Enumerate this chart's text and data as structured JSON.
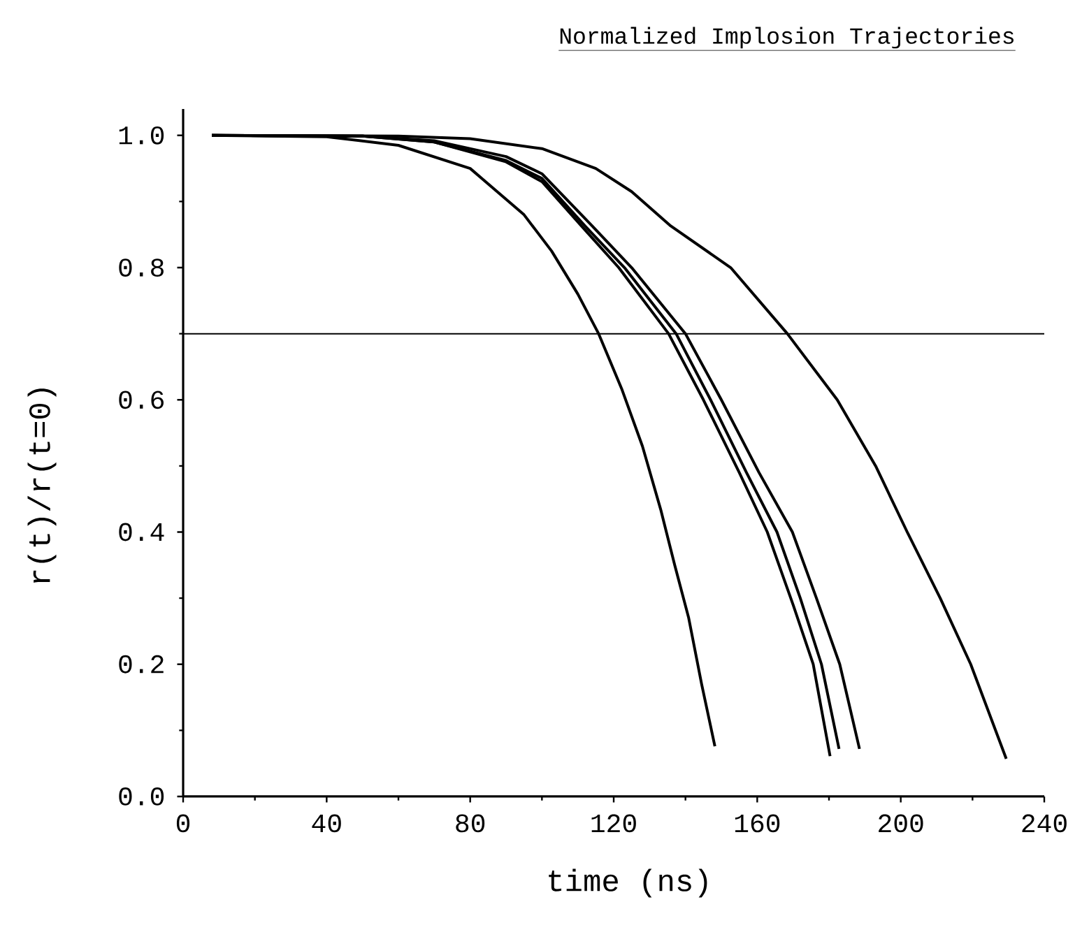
{
  "chart_data": {
    "type": "line",
    "title": "Normalized Implosion Trajectories",
    "xlabel": "time (ns)",
    "ylabel": "r(t)/r(t=0)",
    "xlim": [
      0,
      240
    ],
    "ylim": [
      0,
      1.04
    ],
    "xticks": [
      0,
      40,
      80,
      120,
      160,
      200,
      240
    ],
    "yticks": [
      {
        "value": 0,
        "label": "0.0"
      },
      0.2,
      0.4,
      0.6,
      0.8,
      {
        "value": 1,
        "label": "1.0"
      }
    ],
    "grid": false,
    "ref_lines": [
      {
        "axis": "y",
        "value": 0.7,
        "color": "#000000"
      }
    ],
    "series": [
      {
        "color": "#000000",
        "x": [
          8,
          40,
          60,
          80,
          95,
          102.7,
          110,
          115.8,
          122.2,
          128,
          133.1,
          137,
          140.9,
          144.5,
          148.2
        ],
        "values": [
          1.0,
          0.998,
          0.985,
          0.95,
          0.88,
          0.825,
          0.76,
          0.7,
          0.617,
          0.53,
          0.434,
          0.35,
          0.27,
          0.17,
          0.076
        ]
      },
      {
        "color": "#000000",
        "x": [
          8,
          50,
          70,
          90,
          100,
          111,
          121.4,
          135.3,
          145,
          155,
          162.8,
          170,
          175.6,
          180.3
        ],
        "values": [
          1.0,
          0.999,
          0.99,
          0.96,
          0.93,
          0.863,
          0.8,
          0.7,
          0.6,
          0.49,
          0.4,
          0.29,
          0.2,
          0.061
        ]
      },
      {
        "color": "#000000",
        "x": [
          8,
          50,
          70,
          90,
          100,
          112,
          123,
          137.4,
          147,
          157,
          165.5,
          172,
          177.9,
          182.8
        ],
        "values": [
          1.0,
          0.999,
          0.99,
          0.962,
          0.935,
          0.863,
          0.8,
          0.7,
          0.6,
          0.49,
          0.4,
          0.3,
          0.2,
          0.072
        ]
      },
      {
        "color": "#000000",
        "x": [
          8,
          50,
          70,
          90,
          100,
          114,
          125,
          140,
          150,
          160.5,
          169.8,
          176.5,
          183,
          188.5
        ],
        "values": [
          1.0,
          0.999,
          0.992,
          0.968,
          0.942,
          0.863,
          0.8,
          0.7,
          0.6,
          0.49,
          0.4,
          0.3,
          0.2,
          0.072
        ]
      },
      {
        "color": "#000000",
        "x": [
          8,
          60,
          80,
          100,
          115,
          125,
          135.9,
          152.6,
          168.4,
          182.3,
          193,
          201.8,
          211,
          219.5,
          229.4
        ],
        "values": [
          1.0,
          0.999,
          0.995,
          0.98,
          0.95,
          0.915,
          0.863,
          0.8,
          0.7,
          0.6,
          0.5,
          0.4,
          0.3,
          0.2,
          0.057
        ]
      }
    ]
  }
}
